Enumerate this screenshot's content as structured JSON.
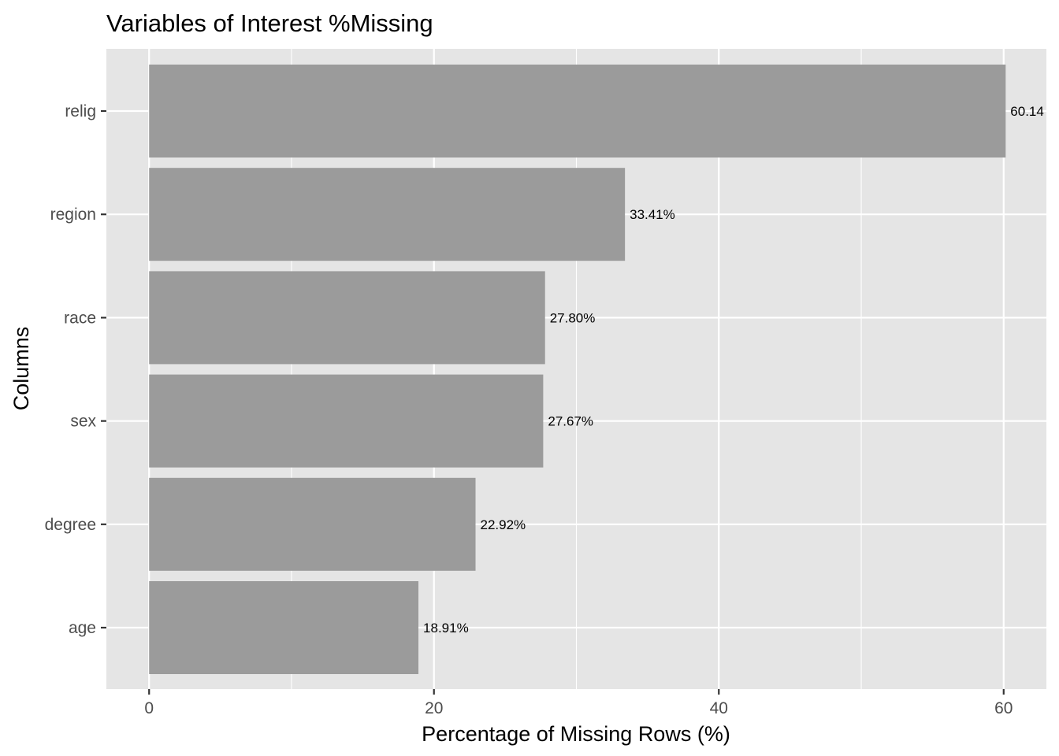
{
  "chart_data": {
    "type": "bar",
    "orientation": "horizontal",
    "title": "Variables of Interest %Missing",
    "xlabel": "Percentage of Missing Rows (%)",
    "ylabel": "Columns",
    "categories": [
      "relig",
      "region",
      "race",
      "sex",
      "degree",
      "age"
    ],
    "values": [
      60.14,
      33.41,
      27.8,
      27.67,
      22.92,
      18.91
    ],
    "data_labels": [
      "60.14",
      "33.41%",
      "27.80%",
      "27.67%",
      "22.92%",
      "18.91%"
    ],
    "xlim": [
      -3,
      63
    ],
    "x_ticks": [
      0,
      20,
      40,
      60
    ],
    "x_tick_labels": [
      "0",
      "20",
      "40",
      "60"
    ],
    "x_minor_ticks": [
      10,
      30,
      50
    ],
    "grid": true,
    "legend": "none",
    "colors": {
      "bar": "#9b9b9b",
      "panel": "#e5e5e5",
      "grid": "#ffffff",
      "tick": "#333333"
    }
  }
}
